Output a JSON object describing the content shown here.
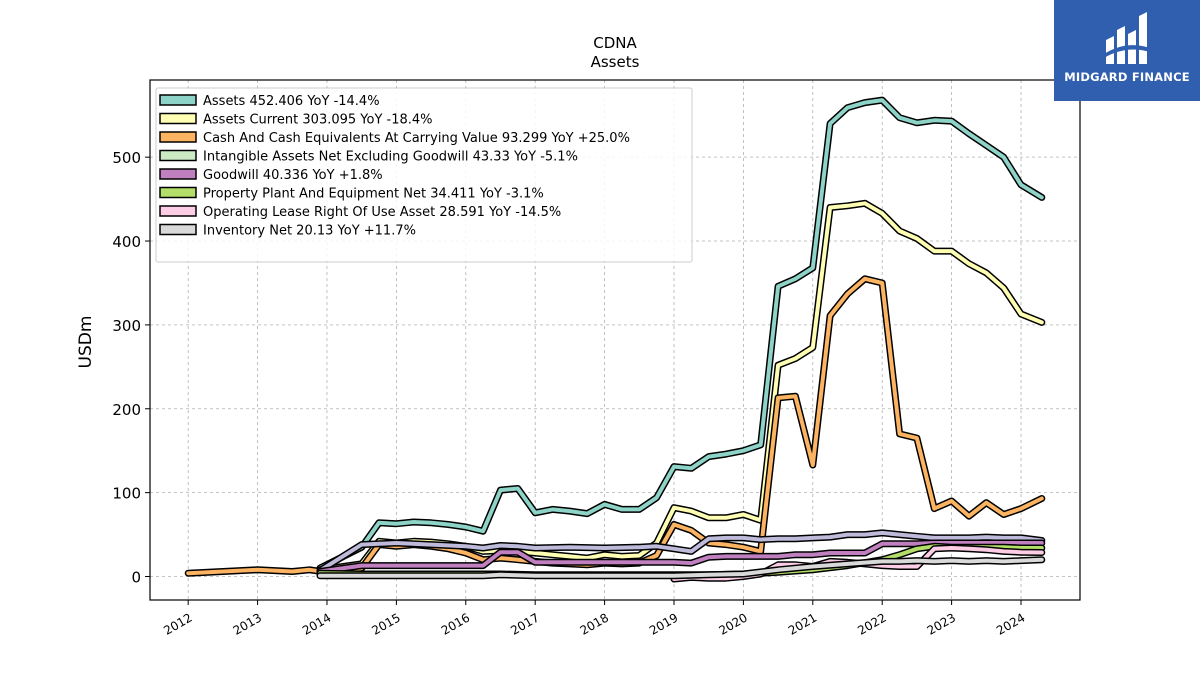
{
  "chart_data": {
    "type": "line",
    "title": "CDNA",
    "subtitle": "Assets",
    "ylabel": "USDm",
    "xlabel": "",
    "xlim": [
      2011.45,
      2024.85
    ],
    "ylim": [
      -28,
      592
    ],
    "yticks": [
      0,
      100,
      200,
      300,
      400,
      500
    ],
    "xticks": [
      2012,
      2013,
      2014,
      2015,
      2016,
      2017,
      2018,
      2019,
      2020,
      2021,
      2022,
      2023,
      2024
    ],
    "grid": true,
    "legend_position": "top-left",
    "series": [
      {
        "name": "Assets  452.406 YoY -14.4%",
        "color": "#8dd3c7",
        "points": [
          [
            2013.9,
            10
          ],
          [
            2014.5,
            35
          ],
          [
            2014.75,
            64
          ],
          [
            2015.0,
            63
          ],
          [
            2015.25,
            65
          ],
          [
            2015.5,
            64
          ],
          [
            2015.75,
            62
          ],
          [
            2016.0,
            59
          ],
          [
            2016.25,
            54
          ],
          [
            2016.5,
            103
          ],
          [
            2016.75,
            105
          ],
          [
            2017.0,
            76
          ],
          [
            2017.25,
            80
          ],
          [
            2017.5,
            78
          ],
          [
            2017.75,
            75
          ],
          [
            2018.0,
            86
          ],
          [
            2018.25,
            80
          ],
          [
            2018.5,
            80
          ],
          [
            2018.75,
            94
          ],
          [
            2019.0,
            131
          ],
          [
            2019.25,
            129
          ],
          [
            2019.5,
            143
          ],
          [
            2019.75,
            146
          ],
          [
            2020.0,
            150
          ],
          [
            2020.25,
            157
          ],
          [
            2020.5,
            346
          ],
          [
            2020.75,
            355
          ],
          [
            2021.0,
            368
          ],
          [
            2021.25,
            540
          ],
          [
            2021.5,
            559
          ],
          [
            2021.75,
            565
          ],
          [
            2022.0,
            568
          ],
          [
            2022.25,
            547
          ],
          [
            2022.5,
            541
          ],
          [
            2022.75,
            544
          ],
          [
            2023.0,
            543
          ],
          [
            2023.25,
            528
          ],
          [
            2023.5,
            514
          ],
          [
            2023.75,
            500
          ],
          [
            2024.0,
            467
          ],
          [
            2024.3,
            452
          ]
        ]
      },
      {
        "name": "Assets Current  303.095 YoY -18.4%",
        "color": "#ffffb3",
        "points": [
          [
            2013.9,
            8
          ],
          [
            2014.5,
            15
          ],
          [
            2014.75,
            42
          ],
          [
            2015.0,
            40
          ],
          [
            2015.25,
            42
          ],
          [
            2015.5,
            41
          ],
          [
            2015.75,
            39
          ],
          [
            2016.0,
            36
          ],
          [
            2016.25,
            30
          ],
          [
            2016.5,
            31
          ],
          [
            2016.75,
            30
          ],
          [
            2017.0,
            28
          ],
          [
            2017.25,
            26
          ],
          [
            2017.5,
            24
          ],
          [
            2017.75,
            22
          ],
          [
            2018.0,
            26
          ],
          [
            2018.25,
            24
          ],
          [
            2018.5,
            25
          ],
          [
            2018.75,
            40
          ],
          [
            2019.0,
            82
          ],
          [
            2019.25,
            78
          ],
          [
            2019.5,
            70
          ],
          [
            2019.75,
            70
          ],
          [
            2020.0,
            74
          ],
          [
            2020.25,
            67
          ],
          [
            2020.5,
            252
          ],
          [
            2020.75,
            260
          ],
          [
            2021.0,
            273
          ],
          [
            2021.25,
            440
          ],
          [
            2021.5,
            442
          ],
          [
            2021.75,
            445
          ],
          [
            2022.0,
            433
          ],
          [
            2022.25,
            412
          ],
          [
            2022.5,
            403
          ],
          [
            2022.75,
            388
          ],
          [
            2023.0,
            388
          ],
          [
            2023.25,
            373
          ],
          [
            2023.5,
            362
          ],
          [
            2023.75,
            344
          ],
          [
            2024.0,
            313
          ],
          [
            2024.3,
            303
          ]
        ]
      },
      {
        "name": "Cash And Cash Equivalents At Carrying Value  93.299 YoY +25.0%",
        "color": "#fdb462",
        "points": [
          [
            2012.0,
            4
          ],
          [
            2012.5,
            6
          ],
          [
            2013.0,
            8
          ],
          [
            2013.5,
            6
          ],
          [
            2013.75,
            8
          ],
          [
            2014.0,
            5
          ],
          [
            2014.5,
            10
          ],
          [
            2014.75,
            38
          ],
          [
            2015.0,
            36
          ],
          [
            2015.25,
            38
          ],
          [
            2015.5,
            36
          ],
          [
            2015.75,
            33
          ],
          [
            2016.0,
            28
          ],
          [
            2016.25,
            20
          ],
          [
            2016.5,
            22
          ],
          [
            2016.75,
            20
          ],
          [
            2017.0,
            18
          ],
          [
            2017.25,
            16
          ],
          [
            2017.5,
            15
          ],
          [
            2017.75,
            14
          ],
          [
            2018.0,
            16
          ],
          [
            2018.25,
            15
          ],
          [
            2018.5,
            16
          ],
          [
            2018.75,
            25
          ],
          [
            2019.0,
            62
          ],
          [
            2019.25,
            55
          ],
          [
            2019.5,
            40
          ],
          [
            2019.75,
            38
          ],
          [
            2020.0,
            35
          ],
          [
            2020.25,
            30
          ],
          [
            2020.5,
            213
          ],
          [
            2020.75,
            215
          ],
          [
            2021.0,
            133
          ],
          [
            2021.25,
            311
          ],
          [
            2021.5,
            337
          ],
          [
            2021.75,
            355
          ],
          [
            2022.0,
            350
          ],
          [
            2022.25,
            170
          ],
          [
            2022.5,
            165
          ],
          [
            2022.75,
            81
          ],
          [
            2023.0,
            90
          ],
          [
            2023.25,
            72
          ],
          [
            2023.5,
            88
          ],
          [
            2023.75,
            74
          ],
          [
            2024.0,
            81
          ],
          [
            2024.3,
            93
          ]
        ]
      },
      {
        "name": "Intangible Assets Net Excluding Goodwill  43.33 YoY -5.1%",
        "color": "#bebada",
        "legendColor": "#ccebc5",
        "points": [
          [
            2013.9,
            7
          ],
          [
            2014.5,
            38
          ],
          [
            2015.0,
            40
          ],
          [
            2015.5,
            38
          ],
          [
            2016.0,
            36
          ],
          [
            2016.25,
            34
          ],
          [
            2016.5,
            37
          ],
          [
            2016.75,
            36
          ],
          [
            2017.0,
            34
          ],
          [
            2017.5,
            35
          ],
          [
            2018.0,
            34
          ],
          [
            2018.5,
            35
          ],
          [
            2018.75,
            36
          ],
          [
            2019.0,
            33
          ],
          [
            2019.25,
            30
          ],
          [
            2019.5,
            45
          ],
          [
            2019.75,
            46
          ],
          [
            2020.0,
            46
          ],
          [
            2020.25,
            44
          ],
          [
            2020.5,
            45
          ],
          [
            2020.75,
            45
          ],
          [
            2021.0,
            46
          ],
          [
            2021.25,
            47
          ],
          [
            2021.5,
            50
          ],
          [
            2021.75,
            50
          ],
          [
            2022.0,
            52
          ],
          [
            2022.25,
            50
          ],
          [
            2022.5,
            48
          ],
          [
            2022.75,
            46
          ],
          [
            2023.0,
            46
          ],
          [
            2023.25,
            46
          ],
          [
            2023.5,
            47
          ],
          [
            2023.75,
            46
          ],
          [
            2024.0,
            46
          ],
          [
            2024.3,
            43
          ]
        ]
      },
      {
        "name": "Goodwill  40.336 YoY +1.8%",
        "color": "#c080c0",
        "points": [
          [
            2013.9,
            6
          ],
          [
            2014.5,
            13
          ],
          [
            2015.0,
            13
          ],
          [
            2015.5,
            13
          ],
          [
            2016.0,
            13
          ],
          [
            2016.25,
            13
          ],
          [
            2016.5,
            29
          ],
          [
            2016.75,
            29
          ],
          [
            2017.0,
            17
          ],
          [
            2017.5,
            17
          ],
          [
            2018.0,
            17
          ],
          [
            2018.5,
            17
          ],
          [
            2019.0,
            17
          ],
          [
            2019.25,
            16
          ],
          [
            2019.5,
            23
          ],
          [
            2019.75,
            24
          ],
          [
            2020.0,
            24
          ],
          [
            2020.25,
            24
          ],
          [
            2020.5,
            24
          ],
          [
            2020.75,
            26
          ],
          [
            2021.0,
            26
          ],
          [
            2021.25,
            28
          ],
          [
            2021.5,
            28
          ],
          [
            2021.75,
            28
          ],
          [
            2022.0,
            39
          ],
          [
            2022.25,
            39
          ],
          [
            2022.5,
            39
          ],
          [
            2022.75,
            40
          ],
          [
            2023.0,
            40
          ],
          [
            2023.25,
            40
          ],
          [
            2023.5,
            40
          ],
          [
            2023.75,
            40
          ],
          [
            2024.0,
            40
          ],
          [
            2024.3,
            40
          ]
        ]
      },
      {
        "name": "Property Plant And Equipment Net  34.411 YoY -3.1%",
        "color": "#b3de69",
        "points": [
          [
            2013.9,
            4
          ],
          [
            2014.5,
            3
          ],
          [
            2015.0,
            3
          ],
          [
            2015.5,
            3
          ],
          [
            2016.0,
            3
          ],
          [
            2016.5,
            3
          ],
          [
            2017.0,
            2
          ],
          [
            2017.5,
            2
          ],
          [
            2018.0,
            2
          ],
          [
            2018.5,
            2
          ],
          [
            2019.0,
            2
          ],
          [
            2019.5,
            2
          ],
          [
            2020.0,
            3
          ],
          [
            2020.5,
            5
          ],
          [
            2021.0,
            8
          ],
          [
            2021.5,
            13
          ],
          [
            2022.0,
            20
          ],
          [
            2022.25,
            26
          ],
          [
            2022.5,
            33
          ],
          [
            2022.75,
            36
          ],
          [
            2023.0,
            35
          ],
          [
            2023.25,
            35
          ],
          [
            2023.5,
            35
          ],
          [
            2023.75,
            35
          ],
          [
            2024.0,
            34
          ],
          [
            2024.3,
            34
          ]
        ]
      },
      {
        "name": "Operating Lease Right Of Use Asset  28.591 YoY -14.5%",
        "color": "#fccde5",
        "points": [
          [
            2019.0,
            -3
          ],
          [
            2019.25,
            -1
          ],
          [
            2019.5,
            -2
          ],
          [
            2019.75,
            -2
          ],
          [
            2020.0,
            0
          ],
          [
            2020.25,
            3
          ],
          [
            2020.5,
            14
          ],
          [
            2020.75,
            14
          ],
          [
            2021.0,
            12
          ],
          [
            2021.25,
            18
          ],
          [
            2021.5,
            17
          ],
          [
            2021.75,
            15
          ],
          [
            2022.0,
            13
          ],
          [
            2022.25,
            12
          ],
          [
            2022.5,
            12
          ],
          [
            2022.75,
            33
          ],
          [
            2023.0,
            34
          ],
          [
            2023.25,
            33
          ],
          [
            2023.5,
            32
          ],
          [
            2023.75,
            30
          ],
          [
            2024.0,
            29
          ],
          [
            2024.3,
            28.6
          ]
        ]
      },
      {
        "name": "Inventory Net  20.13 YoY +11.7%",
        "color": "#d9d9d9",
        "points": [
          [
            2013.9,
            1
          ],
          [
            2014.5,
            1
          ],
          [
            2015.0,
            1
          ],
          [
            2015.5,
            1
          ],
          [
            2016.0,
            1
          ],
          [
            2016.25,
            1
          ],
          [
            2016.5,
            2
          ],
          [
            2017.0,
            1
          ],
          [
            2017.5,
            1
          ],
          [
            2018.0,
            1
          ],
          [
            2018.5,
            1
          ],
          [
            2019.0,
            1
          ],
          [
            2019.5,
            2
          ],
          [
            2020.0,
            3
          ],
          [
            2020.5,
            8
          ],
          [
            2021.0,
            12
          ],
          [
            2021.5,
            15
          ],
          [
            2022.0,
            18
          ],
          [
            2022.25,
            18
          ],
          [
            2022.5,
            19
          ],
          [
            2022.75,
            18
          ],
          [
            2023.0,
            19
          ],
          [
            2023.25,
            18
          ],
          [
            2023.5,
            19
          ],
          [
            2023.75,
            18
          ],
          [
            2024.0,
            19
          ],
          [
            2024.3,
            20
          ]
        ]
      }
    ]
  },
  "logo": {
    "text": "MIDGARD FINANCE",
    "background": "#2f5fae"
  }
}
